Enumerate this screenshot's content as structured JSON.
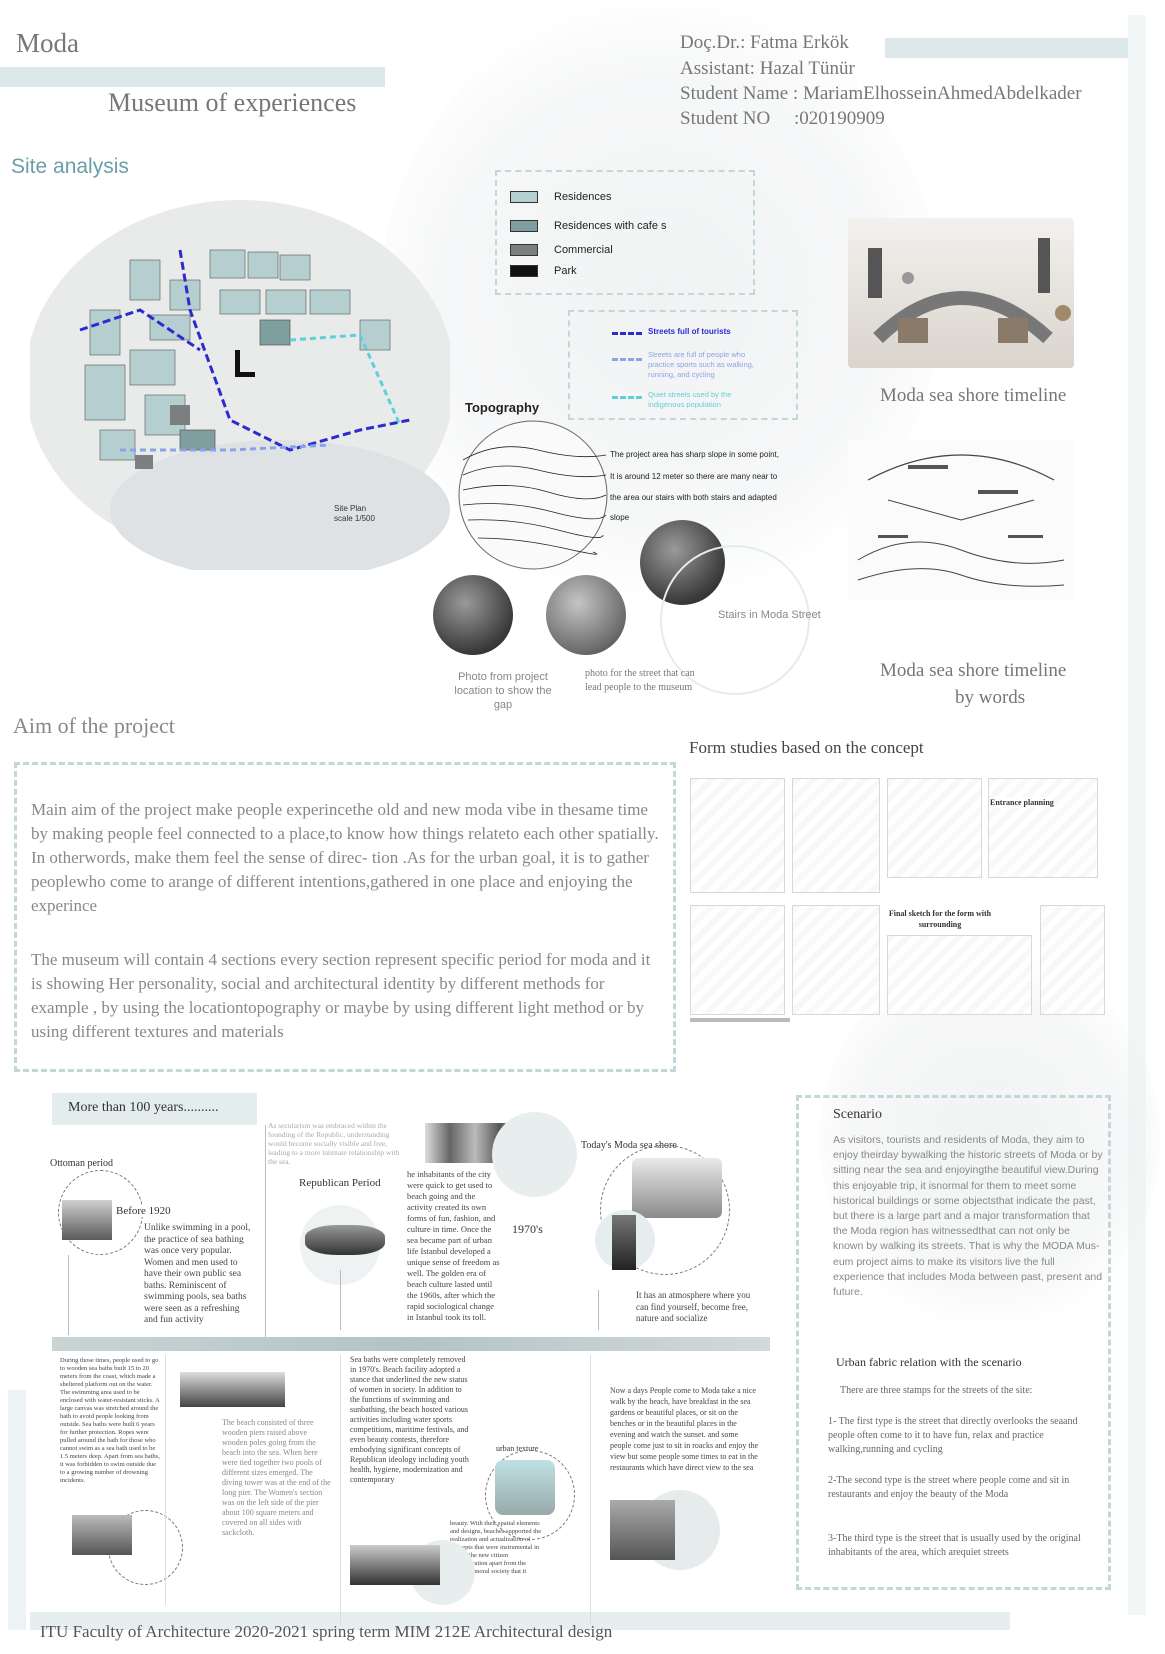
{
  "header": {
    "moda": "Moda",
    "subtitle": "Museum of experiences",
    "instructor": "Doç.Dr.: Fatma Erkök",
    "assistant": "Assistant: Hazal Tünür",
    "student_name": "Student Name : MariamElhosseinAhmedAbdelkader",
    "student_no": "Student NO     :020190909"
  },
  "site": {
    "title": "Site analysis",
    "plan_label": "Site Plan",
    "plan_scale": "scale 1/500",
    "legend": [
      "Residences",
      "Residences with cafe s",
      "Commercial",
      "Park"
    ],
    "legend_colors": [
      "#b5cfd0",
      "#7f9ea0",
      "#7c7f80",
      "#111111"
    ],
    "streets": [
      {
        "label": "Streets full of tourists",
        "color": "#2b2bd0"
      },
      {
        "label": "Streets are full of people who practice sports such as walking, running, and cycling",
        "color": "#8aa3e8"
      },
      {
        "label": "Quiet streets used by the indigenous population",
        "color": "#5fd0d8"
      }
    ],
    "topography_title": "Topography",
    "topography_text": [
      "The project area has sharp slope in some point,",
      "It is around 12 meter so there are many near to",
      "the area our stairs with both stairs and adapted",
      "slope"
    ],
    "photo1_caption": "Photo from project location to show the gap",
    "photo2_caption": "photo for the street that can lead people to the museum",
    "photo3_caption": "Stairs in Moda Street"
  },
  "right_panel": {
    "timeline_title": "Moda sea shore timeline",
    "timeline_words_line1": "Moda sea shore timeline",
    "timeline_words_line2": "by words",
    "form_title": "Form studies based on the concept",
    "form_entrance": "Entrance planning",
    "form_final": "Final sketch for the form with surrounding"
  },
  "aim": {
    "title": "Aim of the project",
    "p1": "Main aim of the project make people experincethe old and new moda vibe in thesame time by making people feel connected to a place,to know how things relateto each other spatially. In otherwords, make them feel the sense of direc- tion .As for the urban goal, it is to gather peoplewho come to arange of different intentions,gathered in one place and enjoying the experince",
    "p2": "The museum will contain 4 sections every section represent specific period for moda and it is showing Her personality, social and architectural identity by different methods for example , by using the locationtopography or maybe by using different light method or by using different textures and materials"
  },
  "timeline": {
    "title": "More than 100 years..........",
    "ottoman": "Ottoman period",
    "before1920": "Before 1920",
    "before1920_text": "Unlike swimming in a pool, the practice of sea bathing was once very popular. Women and men used to have their own public sea baths. Reminiscent of swimming pools, sea baths were seen as a refreshing and fun activity",
    "republican": "Republican Period",
    "republican_text": "As secularism was embraced within the founding of the Republic, understanding would become socially visible and free, leading to a more intimate relationship with the sea.",
    "seventies": "1970's",
    "seventies_text": "he inhabitants of the city were quick to get used to beach going and the activity created its own forms of fun, fashion, and culture in time. Once the sea became part of urban life Istanbul developed a unique sense of freedom as well. The golden era of beach culture lasted until the 1960s, after which the rapid sociological change in Istanbul took its toll.",
    "today": "Today's Moda sea shore",
    "today_text": "It has an atmosphere where you can find yourself, become free, nature and socialize",
    "b1_text": "During those times, people used to go to wooden sea baths built 15 to 20 meters from the coast, which made a sheltered platform out on the water. The swimming area used to be enclosed with water-resistant sticks. A large canvas was stretched around the bath to avoid people looking from outside. Sea baths were built 6 years for further protection. Ropes were pulled around the bath for those who cannot swim as a sea bath used to be 1.5 meters deep. Apart from sea baths, it was forbidden to swim outside due to a growing number of drowning incidents.",
    "b2_text": "The beach consisted of three wooden piers raised above wooden poles going from the beach into the sea. When here were tied together two pools of different sizes emerged. The diving tower was at the end of the long pier. The Women's section was on the left side of the pier about 100 square meters and covered on all sides with sackcloth.",
    "b3_text": "Sea baths were completely removed in 1970's. Beach facility adopted a stance that underlined the new status of women in society. In addition to the functions of swimming and sunbathing, the beach hosted various activities including water sports competitions, maritime festivals, and even beauty contests, therefore embodying significant concepts of Republican ideology including youth health, hygiene, modernization and contemporary",
    "b3_label": "urban texture",
    "b3b_text": "beauty. With their spatial elements and designs, beaches supported the realization and actualization of concepts that were instrumental in setting the new citizen administration apart from the Ottoman moral society that it replaced.",
    "b4_text": "Now a days People come to Moda take a nice walk by the beach, have breakfast in the sea gardens or beautiful places, or sit on the benches or in the beautiful places in the evening and watch the sunset. and some people come just to sit in roacks and enjoy the view but some people some times to eat in the restaurants which have direct view to the sea"
  },
  "scenario": {
    "title": "Scenario",
    "text": "As visitors, tourists and residents of Moda, they aim to enjoy theirday bywalking the historic streets of Moda or by sitting near the sea and enjoyingthe beautiful view.During this enjoyable trip, it isnormal for them to meet some historical buildings or some objectsthat indicate the past, but there is a large part and a major transformation that the Moda region has witnessedthat can not only be known by walking its streets. That is why the MODA Mus-eum project aims to make its visitors live the full experience that includes Moda between past, present and future.",
    "urban_title": "Urban fabric relation with the scenario",
    "urban_intro": "There are three stamps for the streets of the site:",
    "item1": "1- The first type is the street that directly overlooks the seaand people often come to it to have fun, relax and practice walking,running  and cycling",
    "item2": "2-The second type is the street where people come and sit in restaurants and enjoy the beauty of the Moda",
    "item3": "3-The third type is the street that is usually used by the original inhabitants of the area, which arequiet streets"
  },
  "footer": "ITU Faculty of Architecture 2020-2021 spring term MIM 212E Architectural design"
}
